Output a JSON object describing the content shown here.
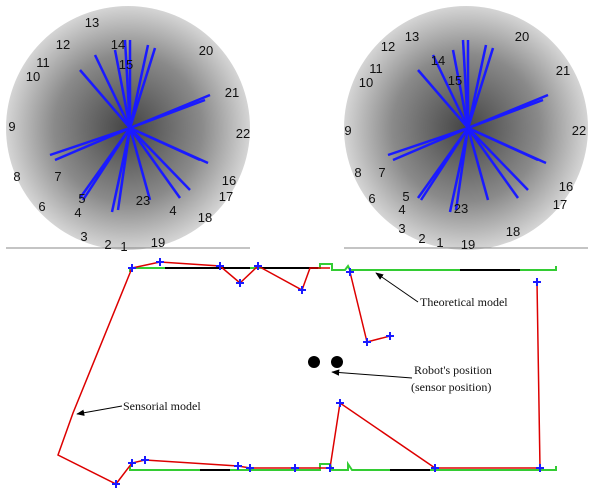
{
  "left_image": {
    "labels": [
      "13",
      "14",
      "15",
      "12",
      "11",
      "10",
      "20",
      "21",
      "22",
      "9",
      "8",
      "7",
      "6",
      "5",
      "4",
      "23",
      "4",
      "16",
      "17",
      "18",
      "3",
      "2",
      "1",
      "19"
    ]
  },
  "right_image": {
    "labels": [
      "13",
      "12",
      "14",
      "15",
      "11",
      "10",
      "20",
      "21",
      "22",
      "9",
      "8",
      "7",
      "6",
      "5",
      "4",
      "3",
      "2",
      "1",
      "19",
      "23",
      "18",
      "17",
      "16"
    ]
  },
  "annotations": {
    "theoretical": "Theoretical model",
    "sensorial": "Sensorial model",
    "robot_line1": "Robot's position",
    "robot_line2": "(sensor position)"
  }
}
